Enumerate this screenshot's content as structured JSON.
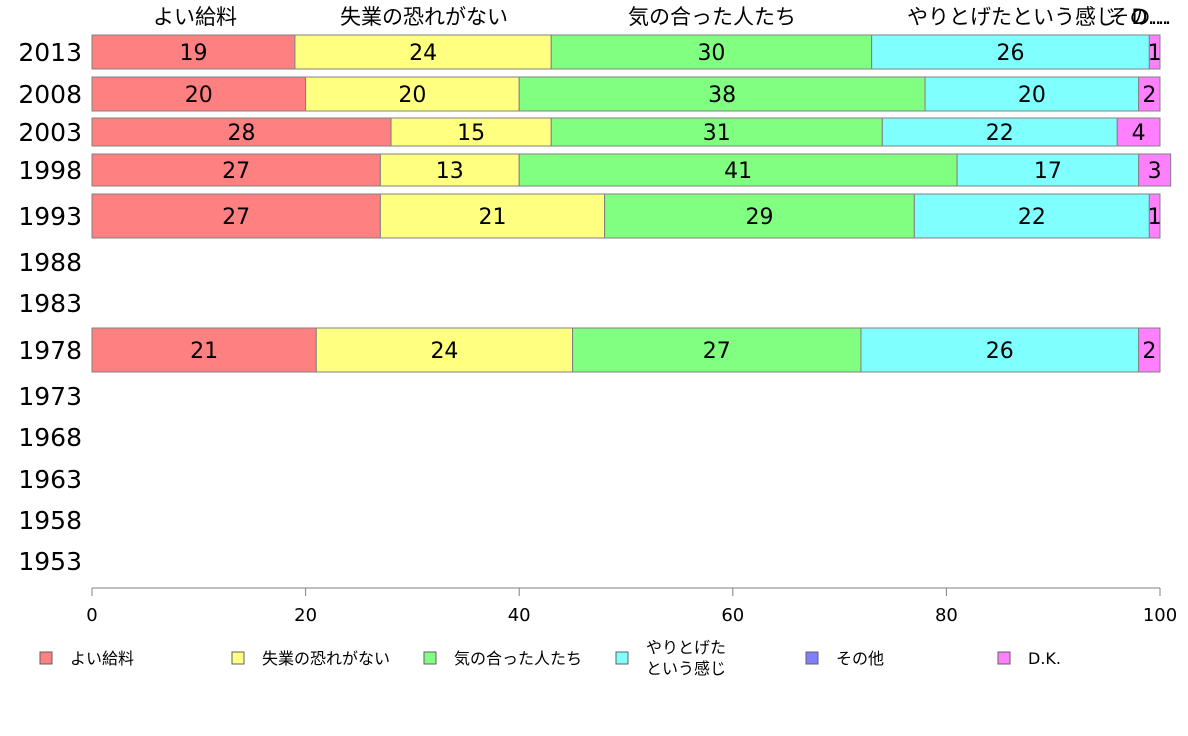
{
  "chart_data": {
    "type": "bar",
    "orientation": "horizontal",
    "stacked": true,
    "xlim": [
      0,
      100
    ],
    "xticks": [
      0,
      20,
      40,
      60,
      80,
      100
    ],
    "categories": [
      "2013",
      "2008",
      "2003",
      "1998",
      "1993",
      "1988",
      "1983",
      "1978",
      "1973",
      "1968",
      "1963",
      "1958",
      "1953"
    ],
    "header_labels": [
      "よい給料",
      "失業の恐れがない",
      "気の合った人たち",
      "やりとげたという感じ",
      "その…",
      "D…"
    ],
    "series": [
      {
        "name": "よい給料",
        "color": "#ff8080",
        "values": [
          19,
          20,
          28,
          27,
          27,
          null,
          null,
          21,
          null,
          null,
          null,
          null,
          null
        ]
      },
      {
        "name": "失業の恐れがない",
        "color": "#ffff80",
        "values": [
          24,
          20,
          15,
          13,
          21,
          null,
          null,
          24,
          null,
          null,
          null,
          null,
          null
        ]
      },
      {
        "name": "気の合った人たち",
        "color": "#80ff80",
        "values": [
          30,
          38,
          31,
          41,
          29,
          null,
          null,
          27,
          null,
          null,
          null,
          null,
          null
        ]
      },
      {
        "name": "やりとげたという感じ",
        "legend_lines": [
          "やりとげた",
          "という感じ"
        ],
        "color": "#80ffff",
        "values": [
          26,
          20,
          22,
          17,
          22,
          null,
          null,
          26,
          null,
          null,
          null,
          null,
          null
        ]
      },
      {
        "name": "その他",
        "color": "#8080ff",
        "values": [
          0,
          0,
          0,
          0,
          0,
          null,
          null,
          0,
          null,
          null,
          null,
          null,
          null
        ]
      },
      {
        "name": "D.K.",
        "color": "#ff80ff",
        "values": [
          1,
          2,
          4,
          3,
          1,
          null,
          null,
          2,
          null,
          null,
          null,
          null,
          null
        ]
      }
    ],
    "legend_position": "bottom"
  }
}
